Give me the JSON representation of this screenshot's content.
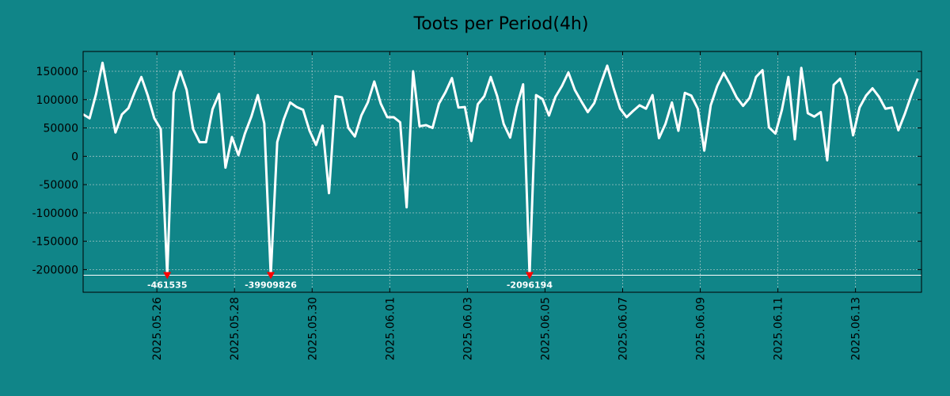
{
  "chart_data": {
    "type": "line",
    "title": "Toots per Period(4h)",
    "xlabel": "",
    "ylabel": "",
    "x_range_days": [
      -1.9,
      19.7
    ],
    "ylim": [
      -240000,
      185000
    ],
    "y_ticks": [
      150000,
      100000,
      50000,
      0,
      -50000,
      -100000,
      -150000,
      -200000
    ],
    "y_tick_labels": [
      "150000",
      "100000",
      "50000",
      "0",
      "-50000",
      "-100000",
      "-150000",
      "-200000"
    ],
    "x_ticks_days": [
      0,
      2,
      4,
      6,
      8,
      10,
      12,
      14,
      16,
      18
    ],
    "x_tick_labels": [
      "2025.05.26",
      "2025.05.28",
      "2025.05.30",
      "2025.06.01",
      "2025.06.03",
      "2025.06.05",
      "2025.06.07",
      "2025.06.09",
      "2025.06.11",
      "2025.06.13"
    ],
    "display_floor": -210000,
    "step_days": 0.1667,
    "series": [
      {
        "name": "Toots per Period(4h)",
        "color": "#ffffff",
        "start_day": -1.9,
        "values": [
          74000,
          67000,
          110000,
          165000,
          103000,
          42000,
          74000,
          85000,
          114000,
          140000,
          107000,
          67000,
          48000,
          -210000,
          112000,
          150000,
          117000,
          48000,
          25000,
          25000,
          83000,
          110000,
          -20000,
          34000,
          2000,
          40000,
          70000,
          108000,
          58000,
          -210000,
          25000,
          65000,
          95000,
          87000,
          82000,
          45000,
          20000,
          54000,
          -65000,
          106000,
          104000,
          50000,
          35000,
          72000,
          95000,
          132000,
          93000,
          69000,
          69000,
          60000,
          -90000,
          150000,
          53000,
          55000,
          50000,
          93000,
          113000,
          138000,
          86000,
          87000,
          27000,
          92000,
          106000,
          140000,
          106000,
          57000,
          33000,
          87000,
          127000,
          -210000,
          108000,
          101000,
          72000,
          105000,
          124000,
          148000,
          117000,
          97000,
          78000,
          94000,
          128000,
          160000,
          120000,
          84000,
          69000,
          80000,
          90000,
          84000,
          108000,
          32000,
          57000,
          95000,
          45000,
          112000,
          107000,
          84000,
          10000,
          90000,
          124000,
          147000,
          127000,
          104000,
          89000,
          103000,
          140000,
          152000,
          51000,
          40000,
          82000,
          140000,
          30000,
          156000,
          76000,
          70000,
          78000,
          -7000,
          126000,
          137000,
          105000,
          37000,
          86000,
          107000,
          120000,
          105000,
          84000,
          86000,
          46000,
          75000,
          108000,
          137000
        ]
      }
    ],
    "clipped_points": [
      {
        "index": 13,
        "actual_value": -461535,
        "label": "-461535"
      },
      {
        "index": 29,
        "actual_value": -39909826,
        "label": "-39909826"
      },
      {
        "index": 69,
        "actual_value": -2096194,
        "label": "-2096194"
      }
    ]
  }
}
